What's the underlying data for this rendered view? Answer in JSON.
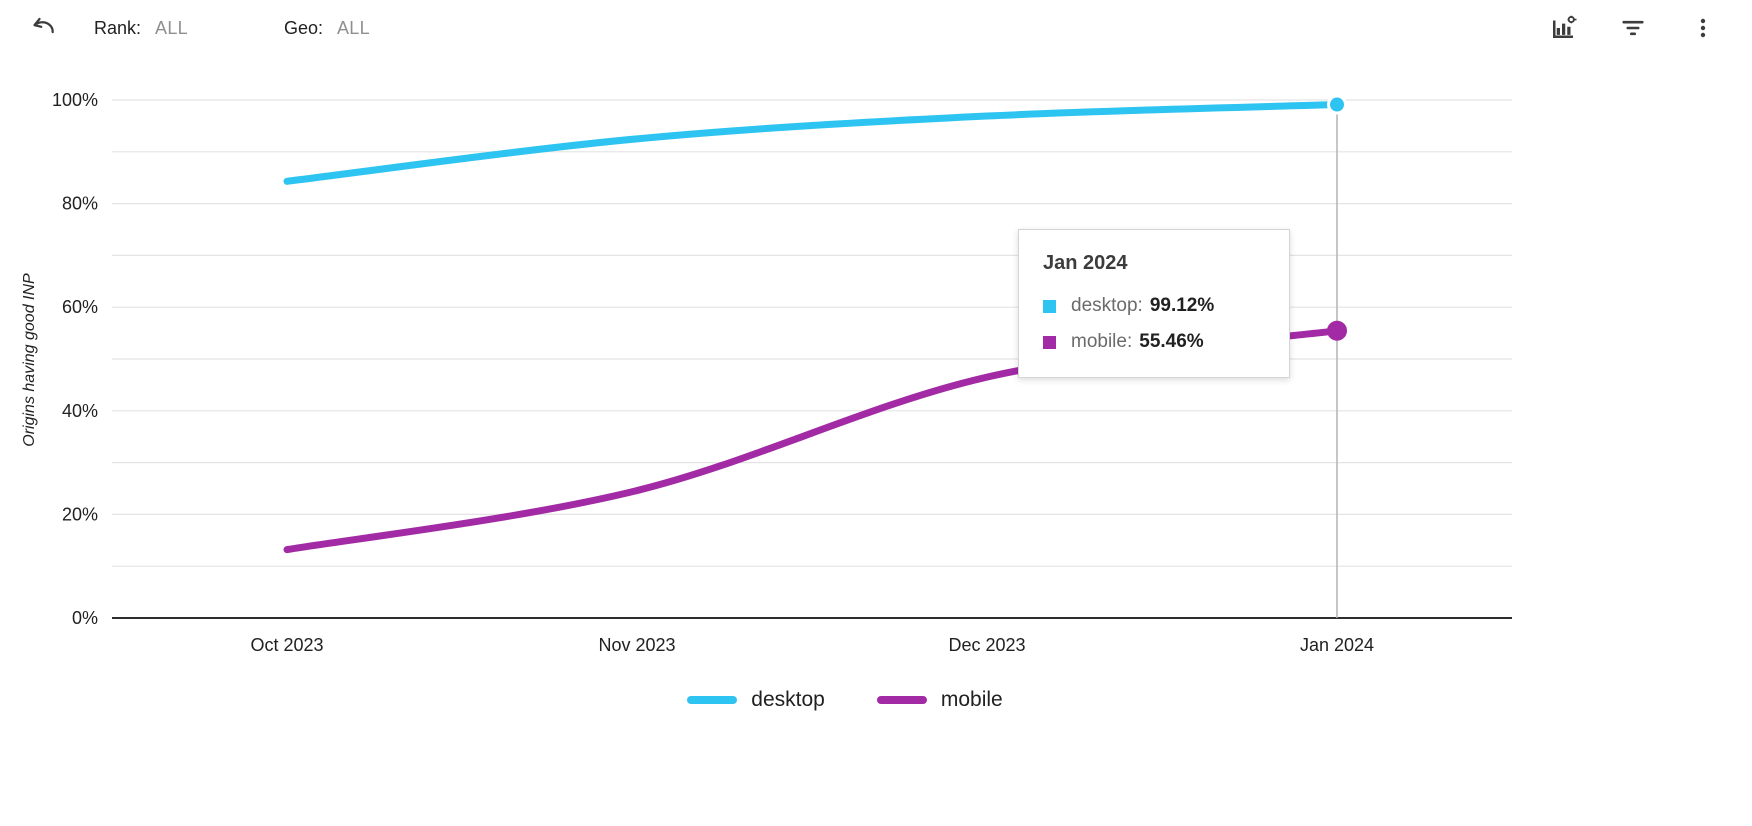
{
  "toolbar": {
    "undo_icon": "undo-icon",
    "rank": {
      "label": "Rank:",
      "value": "ALL"
    },
    "geo": {
      "label": "Geo:",
      "value": "ALL"
    },
    "right_icons": [
      "chart-settings-icon",
      "filter-icon",
      "kebab-menu-icon"
    ]
  },
  "chart_data": {
    "type": "line",
    "title": "",
    "xlabel": "",
    "ylabel": "Origins having good INP",
    "x": [
      "Oct 2023",
      "Nov 2023",
      "Dec 2023",
      "Jan 2024"
    ],
    "series": [
      {
        "name": "desktop",
        "color": "#2EC4F1",
        "values": [
          84.3,
          92.5,
          96.9,
          99.12
        ]
      },
      {
        "name": "mobile",
        "color": "#A22BA5",
        "values": [
          13.2,
          24.6,
          46.5,
          55.46
        ]
      }
    ],
    "ylim": [
      0,
      100
    ],
    "yticks": [
      0,
      20,
      40,
      60,
      80,
      100
    ],
    "ytick_labels": [
      "0%",
      "20%",
      "40%",
      "60%",
      "80%",
      "100%"
    ],
    "grid_step": 10,
    "grid": true,
    "legend_position": "bottom",
    "hover_index": 3
  },
  "tooltip": {
    "title": "Jan 2024",
    "rows": [
      {
        "series": "desktop",
        "label": "desktop:",
        "value": "99.12%"
      },
      {
        "series": "mobile",
        "label": "mobile:",
        "value": "55.46%"
      }
    ]
  },
  "legend": {
    "items": [
      {
        "label": "desktop"
      },
      {
        "label": "mobile"
      }
    ]
  }
}
